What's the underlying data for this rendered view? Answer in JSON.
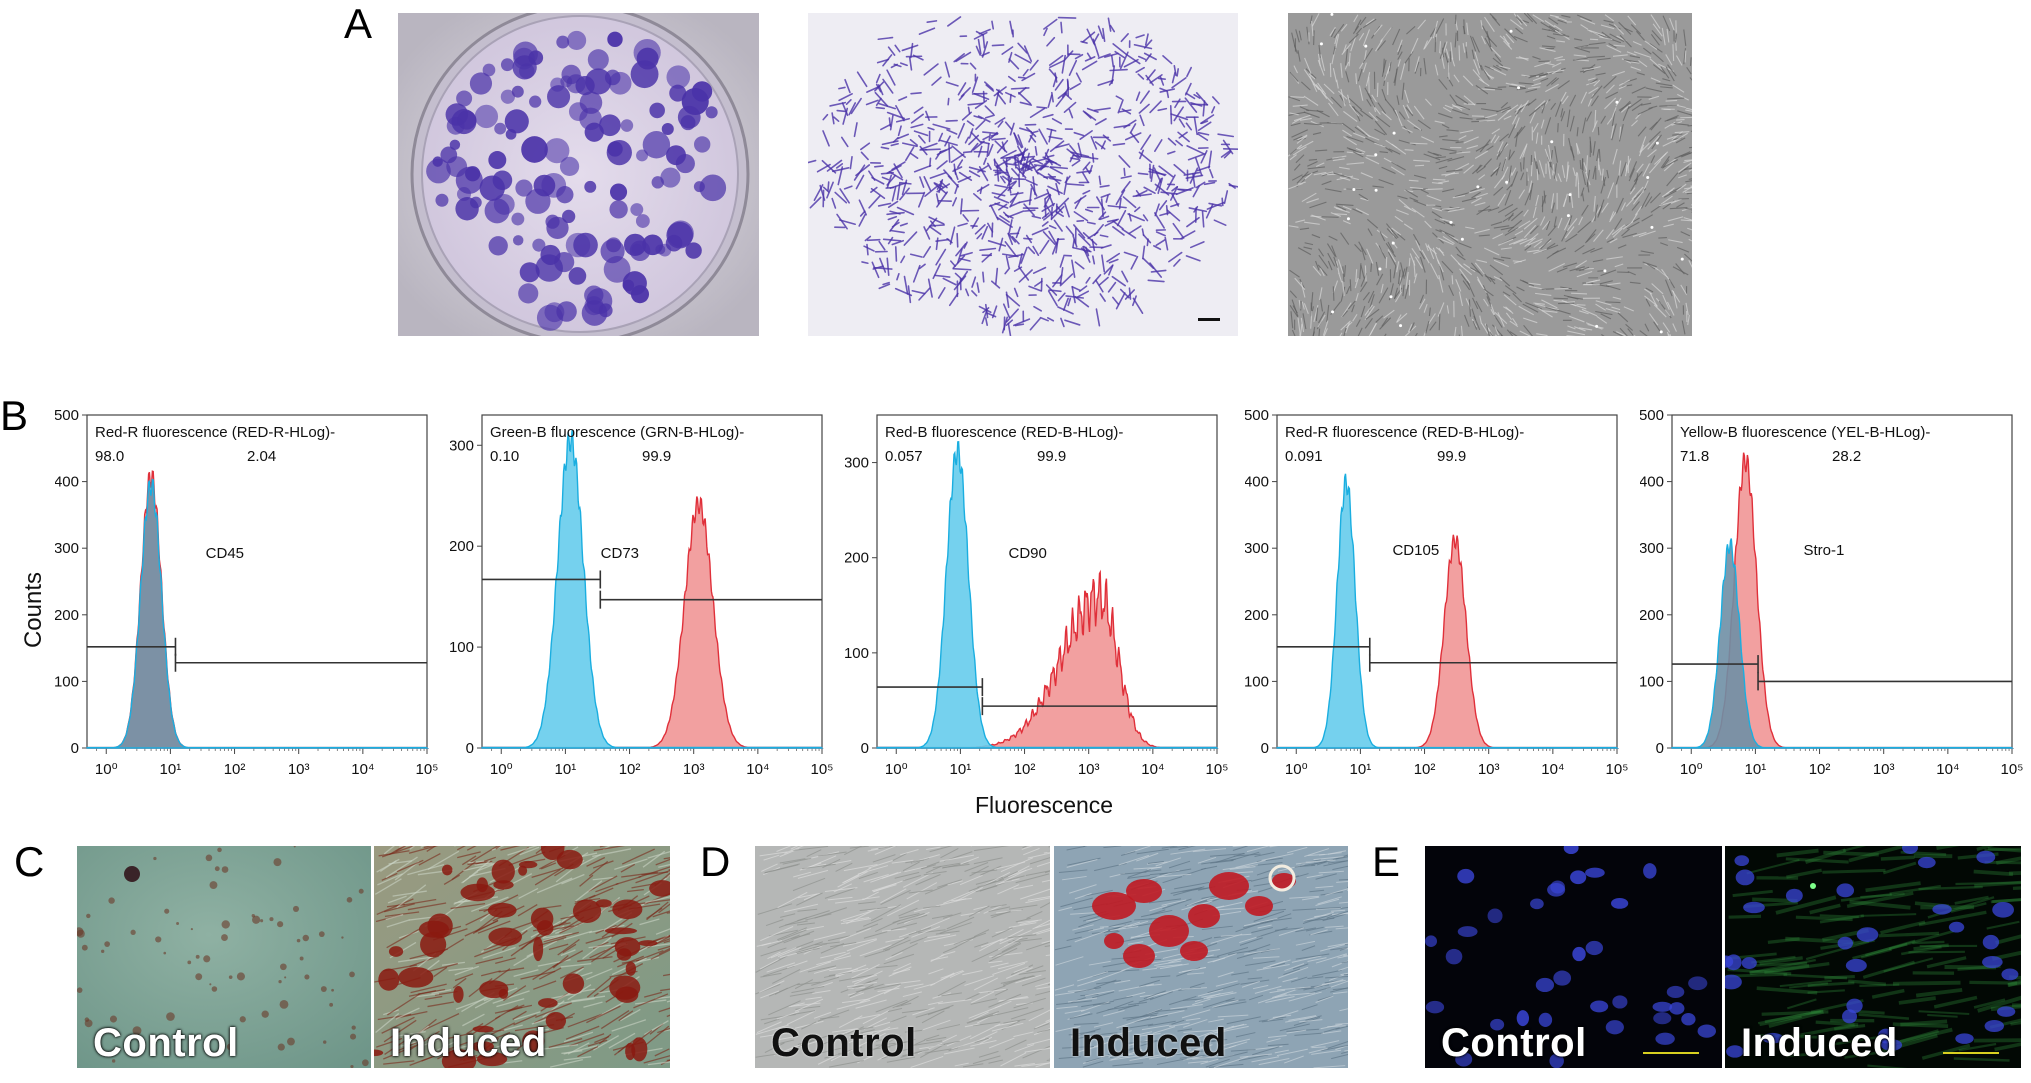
{
  "panels": {
    "A": "A",
    "B": "B",
    "C": "C",
    "D": "D",
    "E": "E"
  },
  "axes": {
    "y_label": "Counts",
    "x_label": "Fluorescence"
  },
  "overlay_labels": {
    "control": "Control",
    "induced": "Induced"
  },
  "colors": {
    "control_fill": "#66ccec",
    "control_stroke": "#1aaee0",
    "marker_fill": "#f08f8f",
    "marker_stroke": "#e0303a",
    "overlap": "#6f8fa5",
    "crystal_violet": "#4a32a8",
    "alizarin": "#8a1a10",
    "oil_red": "#c01a22",
    "dapi": "#3a46d8"
  },
  "chart_data": [
    {
      "type": "area",
      "channel": "Red-R fluorescence (RED-R-HLog)-",
      "marker": "CD45",
      "gate_left_pct": "98.0",
      "gate_right_pct": "2.04",
      "ylim": [
        0,
        500
      ],
      "y_ticks": [
        0,
        100,
        200,
        300,
        400,
        500
      ],
      "x_scale": "log",
      "x_ticks": [
        "10⁰",
        "10¹",
        "10²",
        "10³",
        "10⁴",
        "10⁵"
      ],
      "gate_split": 12,
      "gate_left_y": 152,
      "gate_right_y": 128,
      "series": [
        {
          "role": "control",
          "peak_x": 5,
          "peak_y": 412,
          "width_decades": 0.16
        },
        {
          "role": "stained",
          "peak_x": 5,
          "peak_y": 425,
          "width_decades": 0.16
        }
      ]
    },
    {
      "type": "area",
      "channel": "Green-B fluorescence (GRN-B-HLog)-",
      "marker": "CD73",
      "gate_left_pct": "0.10",
      "gate_right_pct": "99.9",
      "ylim": [
        0,
        330
      ],
      "y_ticks": [
        0,
        100,
        200,
        300
      ],
      "x_scale": "log",
      "x_ticks": [
        "10⁰",
        "10¹",
        "10²",
        "10³",
        "10⁴",
        "10⁵"
      ],
      "gate_split": 35,
      "gate_left_y": 167,
      "gate_right_y": 147,
      "series": [
        {
          "role": "control",
          "peak_x": 12,
          "peak_y": 318,
          "width_decades": 0.2
        },
        {
          "role": "stained",
          "peak_x": 1200,
          "peak_y": 252,
          "width_decades": 0.22
        }
      ]
    },
    {
      "type": "area",
      "channel": "Red-B fluorescence (RED-B-HLog)-",
      "marker": "CD90",
      "gate_left_pct": "0.057",
      "gate_right_pct": "99.9",
      "ylim": [
        0,
        350
      ],
      "y_ticks": [
        0,
        100,
        200,
        300
      ],
      "x_scale": "log",
      "x_ticks": [
        "10⁰",
        "10¹",
        "10²",
        "10³",
        "10⁴",
        "10⁵"
      ],
      "gate_split": 22,
      "gate_left_y": 64,
      "gate_right_y": 44,
      "series": [
        {
          "role": "control",
          "peak_x": 9,
          "peak_y": 325,
          "width_decades": 0.17
        },
        {
          "role": "stained",
          "peak_x": 1500,
          "peak_y": 180,
          "width_decades": 0.4
        }
      ]
    },
    {
      "type": "area",
      "channel": "Red-R fluorescence (RED-B-HLog)-",
      "marker": "CD105",
      "gate_left_pct": "0.091",
      "gate_right_pct": "99.9",
      "ylim": [
        0,
        500
      ],
      "y_ticks": [
        0,
        100,
        200,
        300,
        400,
        500
      ],
      "x_scale": "log",
      "x_ticks": [
        "10⁰",
        "10¹",
        "10²",
        "10³",
        "10⁴",
        "10⁵"
      ],
      "gate_split": 14,
      "gate_left_y": 152,
      "gate_right_y": 128,
      "series": [
        {
          "role": "control",
          "peak_x": 6,
          "peak_y": 415,
          "width_decades": 0.14
        },
        {
          "role": "stained",
          "peak_x": 300,
          "peak_y": 325,
          "width_decades": 0.17
        }
      ]
    },
    {
      "type": "area",
      "channel": "Yellow-B fluorescence (YEL-B-HLog)-",
      "marker": "Stro-1",
      "gate_left_pct": "71.8",
      "gate_right_pct": "28.2",
      "ylim": [
        0,
        500
      ],
      "y_ticks": [
        0,
        100,
        200,
        300,
        400,
        500
      ],
      "x_scale": "log",
      "x_ticks": [
        "10⁰",
        "10¹",
        "10²",
        "10³",
        "10⁴",
        "10⁵"
      ],
      "gate_split": 11,
      "gate_left_y": 126,
      "gate_right_y": 100,
      "series": [
        {
          "role": "control",
          "peak_x": 4,
          "peak_y": 318,
          "width_decades": 0.15
        },
        {
          "role": "stained",
          "peak_x": 7,
          "peak_y": 450,
          "width_decades": 0.17
        }
      ]
    }
  ]
}
